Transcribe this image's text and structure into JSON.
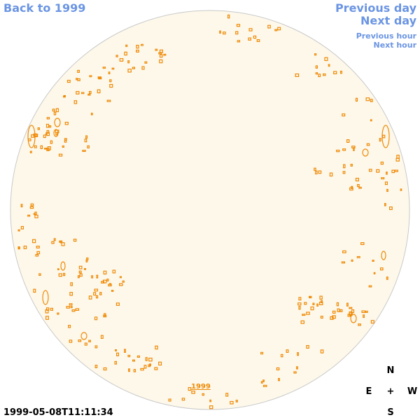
{
  "nav": {
    "back": "Back to 1999",
    "previous_day": "Previous day",
    "next_day": "Next day",
    "previous_hour": "Previous hour",
    "next_hour": "Next hour"
  },
  "disk": {
    "year_label": "1999",
    "fill_color": "#fdf8ea",
    "outline_color": "#c9c9c9",
    "feature_color": "#ef8a07"
  },
  "timestamp": "1999-05-08T11:11:34",
  "compass": {
    "north": "N",
    "east": "E",
    "center": "+",
    "west": "W",
    "south": "S"
  }
}
